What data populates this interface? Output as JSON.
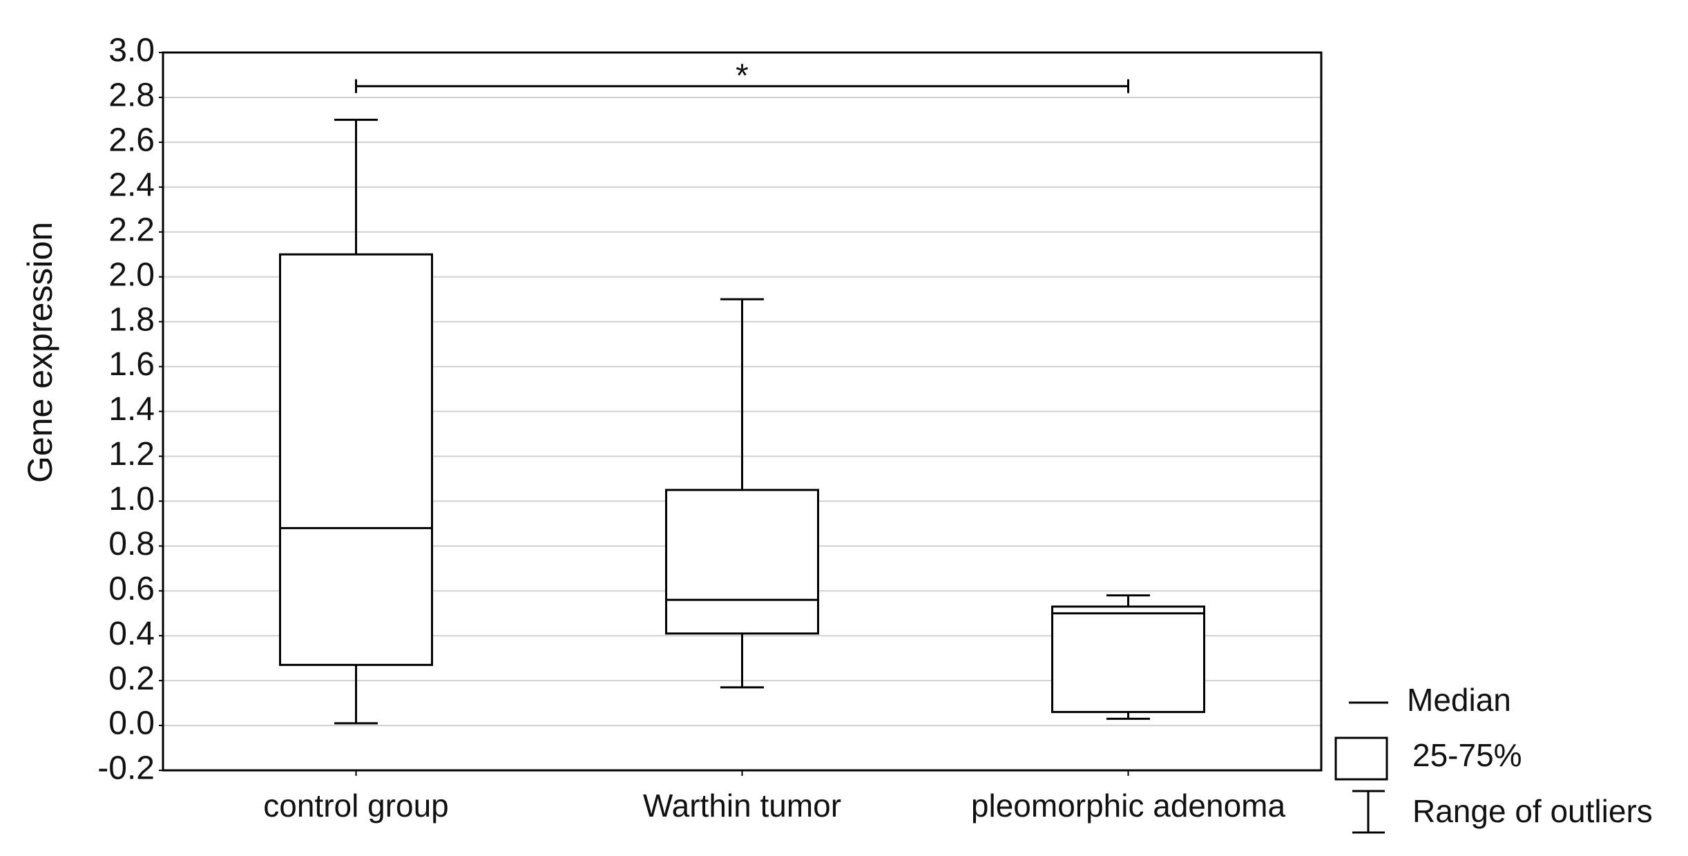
{
  "chart_data": {
    "type": "box",
    "y_label": "Gene  expression",
    "categories": [
      "control group",
      "Warthin tumor",
      "pleomorphic adenoma"
    ],
    "min": [
      0.01,
      0.17,
      0.03
    ],
    "q1": [
      0.27,
      0.41,
      0.06
    ],
    "median": [
      0.88,
      0.56,
      0.5
    ],
    "q3": [
      2.1,
      1.05,
      0.53
    ],
    "max": [
      2.7,
      1.9,
      0.58
    ],
    "color": "#000000",
    "ylim": [
      -0.2,
      3.0
    ],
    "yticks": [
      -0.2,
      {
        "value": 0,
        "label": "0.0"
      },
      0.2,
      0.4,
      0.6,
      0.8,
      {
        "value": 1,
        "label": "1.0"
      },
      1.2,
      1.4,
      1.6,
      1.8,
      {
        "value": 2,
        "label": "2.0"
      },
      2.2,
      2.4,
      2.6,
      2.8,
      {
        "value": 3,
        "label": "3.0"
      }
    ],
    "grid": true,
    "significance": {
      "label": "*",
      "y": 2.85,
      "groups": [
        "control group",
        "pleomorphic adenoma"
      ]
    },
    "legend": {
      "median": "Median",
      "box": "25-75%",
      "whisker": "Range of outliers"
    }
  }
}
